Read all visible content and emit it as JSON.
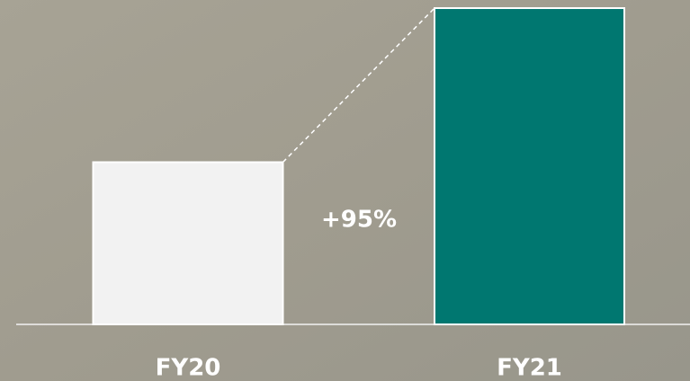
{
  "chart_data": {
    "type": "bar",
    "categories": [
      "FY20",
      "FY21"
    ],
    "values": [
      100,
      195
    ],
    "colors": [
      "#f2f2f2",
      "#007770"
    ],
    "annotation": "+95%",
    "ylim": [
      0,
      200
    ]
  }
}
